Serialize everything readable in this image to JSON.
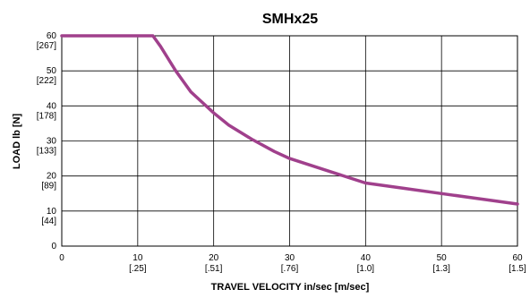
{
  "colors": {
    "curve": "#A0408C"
  },
  "chart_data": {
    "type": "line",
    "title": "SMHx25",
    "xlabel": "TRAVEL VELOCITY in/sec [m/sec]",
    "ylabel": "LOAD  lb  [N]",
    "xlim": [
      0,
      60
    ],
    "ylim": [
      0,
      60
    ],
    "grid": true,
    "x_ticks": [
      {
        "value": 0,
        "label": "0",
        "sub": ""
      },
      {
        "value": 10,
        "label": "10",
        "sub": "[.25]"
      },
      {
        "value": 20,
        "label": "20",
        "sub": "[.51]"
      },
      {
        "value": 30,
        "label": "30",
        "sub": "[.76]"
      },
      {
        "value": 40,
        "label": "40",
        "sub": "[1.0]"
      },
      {
        "value": 50,
        "label": "50",
        "sub": "[1.3]"
      },
      {
        "value": 60,
        "label": "60",
        "sub": "[1.5]"
      }
    ],
    "y_ticks": [
      {
        "value": 0,
        "label": "0",
        "sub": ""
      },
      {
        "value": 10,
        "label": "10",
        "sub": "[44]"
      },
      {
        "value": 20,
        "label": "20",
        "sub": "[89]"
      },
      {
        "value": 30,
        "label": "30",
        "sub": "[133]"
      },
      {
        "value": 40,
        "label": "40",
        "sub": "[178]"
      },
      {
        "value": 50,
        "label": "50",
        "sub": "[222]"
      },
      {
        "value": 60,
        "label": "60",
        "sub": "[267]"
      }
    ],
    "series": [
      {
        "x": [
          0,
          12,
          13,
          14,
          15,
          16,
          17,
          18,
          20,
          22,
          25,
          28,
          30,
          35,
          40,
          45,
          50,
          55,
          60
        ],
        "y": [
          60,
          60,
          57,
          53.5,
          50,
          47,
          44,
          42,
          38,
          34.5,
          30.5,
          27,
          25,
          21.5,
          18,
          16.5,
          15,
          13.5,
          12
        ]
      }
    ]
  }
}
